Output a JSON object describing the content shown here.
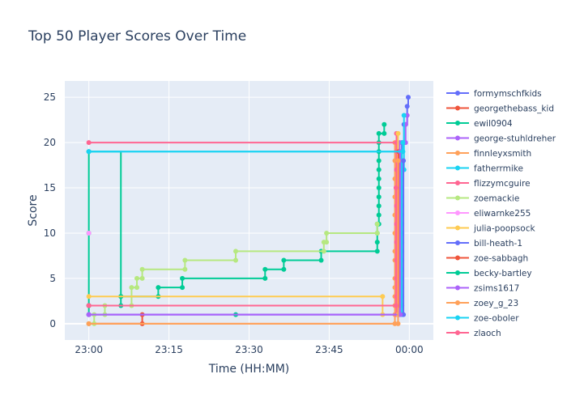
{
  "chart_data": {
    "type": "line",
    "title": "Top 50 Player Scores Over Time",
    "xlabel": "Time (HH:MM)",
    "ylabel": "Score",
    "x_ticks": [
      "23:00",
      "23:15",
      "23:30",
      "23:45",
      "00:00"
    ],
    "x_tick_minutes": [
      0,
      15,
      30,
      45,
      60
    ],
    "xlim_minutes": [
      -4.5,
      64.5
    ],
    "y_ticks": [
      0,
      5,
      10,
      15,
      20,
      25
    ],
    "ylim": [
      -1.8,
      26.8
    ],
    "grid": true,
    "legend_position": "right",
    "series": [
      {
        "name": "formymschfkids",
        "color": "#636efa",
        "x": [
          0,
          58.6,
          58.6,
          58.6,
          59.0,
          59.0,
          59.6,
          59.8
        ],
        "y": [
          2,
          2,
          10,
          20,
          20,
          22,
          24,
          25
        ]
      },
      {
        "name": "georgethebass_kid",
        "color": "#EF553B",
        "x": [
          0,
          10,
          10
        ],
        "y": [
          0,
          0,
          1
        ]
      },
      {
        "name": "ewil0904",
        "color": "#00cc96",
        "x": [
          0,
          0,
          0,
          0,
          6,
          6,
          6,
          13,
          13,
          17.5,
          17.5,
          33,
          33,
          36.5,
          36.5,
          43.5,
          43.5,
          54,
          54,
          54,
          54,
          54.3,
          54.3,
          54.3,
          54.3,
          54.3,
          54.3,
          54.3,
          54.3,
          54.3,
          54.3,
          54.3,
          55.3,
          55.3
        ],
        "y": [
          1,
          2,
          10,
          19,
          2,
          3,
          3,
          3,
          4,
          4,
          5,
          5,
          6,
          6,
          7,
          7,
          8,
          8,
          9,
          10,
          11,
          11,
          12,
          13,
          14,
          15,
          16,
          17,
          18,
          19,
          20,
          21,
          21,
          22
        ]
      },
      {
        "name": "george-stuhldreher",
        "color": "#ab63fa",
        "x": [
          0,
          58.2,
          58.2,
          58.2,
          59.3,
          59.3,
          59.3,
          59.6
        ],
        "y": [
          1,
          1,
          10,
          20,
          20,
          22,
          22,
          23
        ]
      },
      {
        "name": "finnleyxsmith",
        "color": "#FFA15A",
        "x": [
          0,
          57.3,
          57.3,
          57.3,
          57.3,
          57.3,
          57.3,
          57.3,
          57.3,
          57.3,
          57.3,
          57.3,
          57.3,
          57.3,
          57.3
        ],
        "y": [
          0,
          0,
          1,
          2,
          3,
          4,
          5,
          7,
          8,
          10,
          12,
          14,
          16,
          18,
          20
        ]
      },
      {
        "name": "fatherrmike",
        "color": "#19d3f3",
        "x": [
          0,
          58.6,
          58.6,
          58.6,
          58.6,
          58.6,
          58.6,
          58.6,
          58.6,
          58.6,
          58.6,
          58.6,
          58.6,
          58.6,
          58.6,
          58.6,
          58.6,
          58.6,
          58.6,
          59.0,
          59.0
        ],
        "y": [
          19,
          19,
          1,
          2,
          3,
          4,
          5,
          6,
          7,
          8,
          9,
          10,
          11,
          12,
          13,
          14,
          15,
          16,
          17,
          17,
          23
        ]
      },
      {
        "name": "flizzymcguire",
        "color": "#FF6692",
        "x": [
          0,
          57.6,
          57.6,
          57.6,
          57.6,
          57.6,
          57.6,
          57.6,
          57.6,
          57.6,
          57.6,
          57.6,
          57.6,
          57.6
        ],
        "y": [
          20,
          20,
          1,
          2,
          3,
          5,
          7,
          9,
          11,
          13,
          15,
          17,
          19,
          21
        ]
      },
      {
        "name": "zoemackie",
        "color": "#B6E880",
        "x": [
          0,
          1,
          1,
          3,
          3,
          8,
          8,
          9,
          9,
          10,
          10,
          18,
          18,
          27.5,
          27.5,
          44,
          44,
          44.5,
          44.5,
          54,
          54
        ],
        "y": [
          0,
          0,
          1,
          1,
          2,
          2,
          4,
          4,
          5,
          5,
          6,
          6,
          7,
          7,
          8,
          8,
          9,
          9,
          10,
          10,
          11
        ]
      },
      {
        "name": "eliwarnke255",
        "color": "#FF97FF",
        "x": [
          0
        ],
        "y": [
          10
        ]
      },
      {
        "name": "julia-poopsock",
        "color": "#FECB52",
        "x": [
          0,
          55,
          55,
          57.9,
          57.9
        ],
        "y": [
          3,
          3,
          1,
          1,
          21
        ]
      },
      {
        "name": "bill-heath-1",
        "color": "#636efa",
        "x": [
          0,
          58.9,
          58.9
        ],
        "y": [
          1,
          1,
          18
        ]
      },
      {
        "name": "zoe-sabbagh",
        "color": "#EF553B",
        "x": [
          0,
          58.0,
          58.0
        ],
        "y": [
          2,
          2,
          19
        ]
      },
      {
        "name": "becky-bartley",
        "color": "#00cc96",
        "x": [
          27.5
        ],
        "y": [
          1
        ]
      },
      {
        "name": "zsims1617",
        "color": "#ab63fa",
        "x": [
          0,
          58.3,
          58.3
        ],
        "y": [
          1,
          1,
          19
        ]
      },
      {
        "name": "zoey_g_23",
        "color": "#FFA15A",
        "x": [
          0,
          57.9,
          57.9
        ],
        "y": [
          0,
          0,
          18
        ]
      },
      {
        "name": "zoe-oboler",
        "color": "#19d3f3",
        "x": [
          0,
          58.8,
          58.8
        ],
        "y": [
          19,
          19,
          20
        ]
      },
      {
        "name": "zlaoch",
        "color": "#FF6692",
        "x": [
          0,
          57.5,
          57.5
        ],
        "y": [
          2,
          2,
          15
        ]
      }
    ]
  }
}
